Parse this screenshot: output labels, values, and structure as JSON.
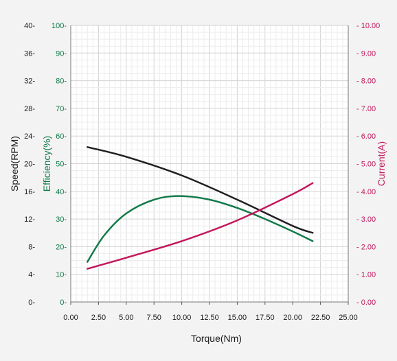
{
  "chart_data": {
    "type": "line",
    "xlabel": "Torque(Nm)",
    "xlim": [
      0,
      25
    ],
    "x_ticks": [
      "0.00",
      "2.50",
      "5.00",
      "7.50",
      "10.00",
      "12.50",
      "15.00",
      "17.50",
      "20.00",
      "22.50",
      "25.00"
    ],
    "grid": true,
    "axes": [
      {
        "id": "speed",
        "label": "Speed(RPM)",
        "side": "left-outer",
        "color": "#1a1a1a",
        "ylim": [
          0,
          40
        ],
        "ticks": [
          "0",
          "4",
          "8",
          "12",
          "16",
          "20",
          "24",
          "28",
          "32",
          "36",
          "40"
        ]
      },
      {
        "id": "efficiency",
        "label": "Efficiency(%)",
        "side": "left-inner",
        "color": "#0f7a4a",
        "ylim": [
          0,
          100
        ],
        "ticks": [
          "0",
          "10",
          "20",
          "30",
          "40",
          "50",
          "60",
          "70",
          "80",
          "90",
          "100"
        ]
      },
      {
        "id": "current",
        "label": "Current(A)",
        "side": "right",
        "color": "#c2185b",
        "ylim": [
          0,
          10
        ],
        "ticks": [
          "0.00",
          "1.00",
          "2.00",
          "3.00",
          "4.00",
          "5.00",
          "6.00",
          "7.00",
          "8.00",
          "9.00",
          "10.00"
        ]
      }
    ],
    "series": [
      {
        "axis": "speed",
        "color": "#1f1f1f",
        "x": [
          1.5,
          5.0,
          10.0,
          15.0,
          20.0,
          21.8
        ],
        "y": [
          22.4,
          21.0,
          18.3,
          14.8,
          11.0,
          10.0
        ]
      },
      {
        "axis": "efficiency",
        "color": "#137a4b",
        "x": [
          1.5,
          3.0,
          5.0,
          7.5,
          9.8,
          12.5,
          15.0,
          17.5,
          20.0,
          21.8
        ],
        "y": [
          14.5,
          24.0,
          32.0,
          37.0,
          38.3,
          37.0,
          34.0,
          30.0,
          25.5,
          22.0
        ]
      },
      {
        "axis": "current",
        "color": "#c2185b",
        "x": [
          1.5,
          5.0,
          10.0,
          15.0,
          20.0,
          21.8
        ],
        "y": [
          1.2,
          1.6,
          2.2,
          2.95,
          3.9,
          4.3
        ]
      }
    ]
  }
}
